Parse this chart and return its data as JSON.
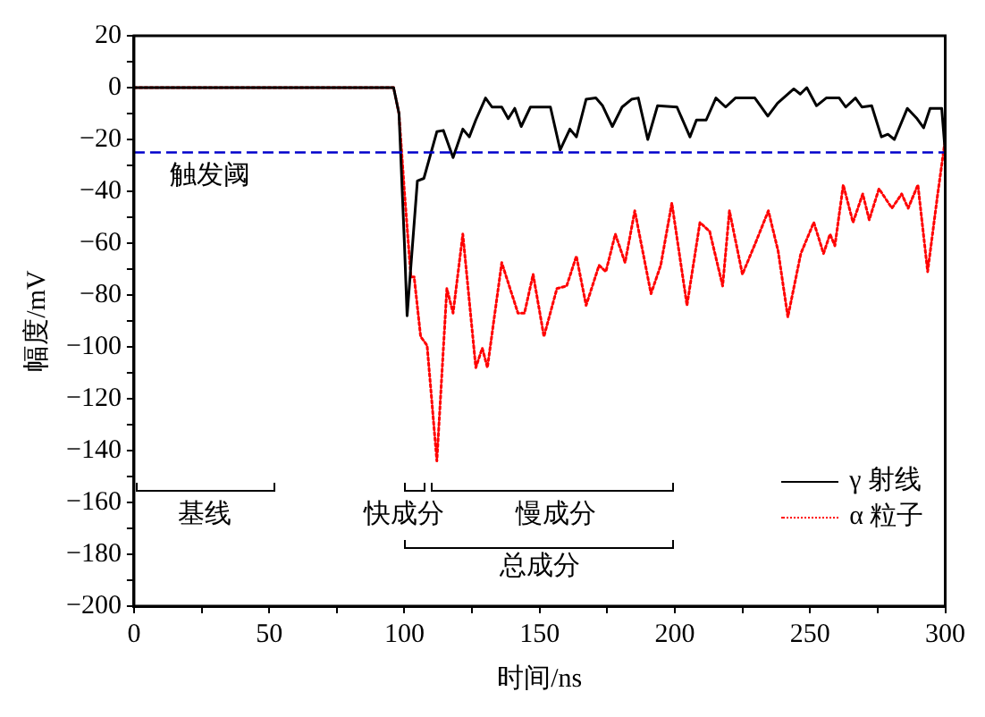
{
  "chart_data": {
    "type": "line",
    "xlabel": "时间/ns",
    "ylabel": "幅度/mV",
    "xlim": [
      0,
      300
    ],
    "ylim": [
      -200,
      20
    ],
    "xticks": [
      0,
      {
        "value": 25,
        "label": null
      },
      50,
      {
        "value": 75,
        "label": null
      },
      100,
      {
        "value": 125,
        "label": null
      },
      150,
      {
        "value": 175,
        "label": null
      },
      200,
      {
        "value": 225,
        "label": null
      },
      250,
      {
        "value": 275,
        "label": null
      },
      300
    ],
    "yticks": [
      {
        "value": -200,
        "label": "−200"
      },
      {
        "value": -190,
        "label": null
      },
      {
        "value": -180,
        "label": "−180"
      },
      {
        "value": -170,
        "label": null
      },
      {
        "value": -160,
        "label": "−160"
      },
      {
        "value": -150,
        "label": null
      },
      {
        "value": -140,
        "label": "−140"
      },
      {
        "value": -130,
        "label": null
      },
      {
        "value": -120,
        "label": "−120"
      },
      {
        "value": -110,
        "label": null
      },
      {
        "value": -100,
        "label": "−100"
      },
      {
        "value": -90,
        "label": null
      },
      {
        "value": -80,
        "label": "−80"
      },
      {
        "value": -70,
        "label": null
      },
      {
        "value": -60,
        "label": "−60"
      },
      {
        "value": -50,
        "label": null
      },
      {
        "value": -40,
        "label": "−40"
      },
      {
        "value": -30,
        "label": null
      },
      {
        "value": -20,
        "label": "−20"
      },
      {
        "value": -10,
        "label": null
      },
      0,
      {
        "value": 10,
        "label": null
      },
      20
    ],
    "grid": false,
    "legend": "bottom right",
    "marker": "none",
    "series": [
      {
        "name": "γ 射线",
        "color": "#000000",
        "line_style": "solid",
        "x": [
          0,
          96,
          98,
          100,
          101,
          104.8,
          107.2,
          112,
          114.4,
          118,
          121.6,
          124,
          126.4,
          130,
          132.4,
          136,
          138.4,
          140.8,
          143.2,
          146.6,
          154,
          157.6,
          161.2,
          163.6,
          167.2,
          170.8,
          173.3,
          176.9,
          180.5,
          184,
          186.5,
          190,
          193.6,
          200.8,
          205.6,
          208,
          211.6,
          215.2,
          218.8,
          222.4,
          229.6,
          234.4,
          238,
          244,
          246.4,
          248.8,
          252.4,
          256,
          260.8,
          263.2,
          266.8,
          269.2,
          272.8,
          276.4,
          278.8,
          281.2,
          286,
          289.6,
          292,
          294.4,
          298.7,
          300
        ],
        "values": [
          0,
          0,
          -10,
          -60,
          -88,
          -36,
          -35,
          -17,
          -16.5,
          -27,
          -16,
          -19,
          -12.5,
          -4,
          -7.5,
          -7.5,
          -12,
          -8,
          -15,
          -7.5,
          -7.5,
          -24,
          -16,
          -19,
          -4.5,
          -4,
          -7,
          -15,
          -7.5,
          -4.5,
          -4,
          -20,
          -7,
          -7.5,
          -19,
          -12.5,
          -12.5,
          -4,
          -7.5,
          -4,
          -4,
          -11,
          -6,
          -0.5,
          -2.5,
          0,
          -7,
          -4,
          -4,
          -7.5,
          -4,
          -7.5,
          -7,
          -19,
          -18,
          -20,
          -8,
          -12,
          -15.5,
          -8,
          -8,
          -25
        ]
      },
      {
        "name": "α 粒子",
        "color": "#ff0000",
        "line_style": "dotted",
        "x": [
          0,
          96,
          98,
          100,
          102.4,
          103.6,
          106,
          108.4,
          112,
          115.7,
          118,
          121.6,
          126.4,
          128.8,
          130.7,
          136,
          142,
          144.4,
          147.6,
          151.6,
          156.4,
          160,
          163.6,
          167.2,
          172,
          174.5,
          178,
          181.6,
          185.2,
          191.2,
          194.8,
          198.9,
          204.5,
          209.3,
          212.9,
          217.7,
          220.2,
          225,
          229.8,
          234.6,
          238.2,
          241.8,
          246.6,
          251.4,
          255,
          257.4,
          259.2,
          262.3,
          265.9,
          269.5,
          271.9,
          275.5,
          280.3,
          283.9,
          286.3,
          289.9,
          293.5,
          297.1,
          300
        ],
        "values": [
          0,
          0,
          -10,
          -40,
          -73,
          -73,
          -96,
          -99.5,
          -144,
          -77.5,
          -87,
          -56.5,
          -108,
          -100.5,
          -108,
          -67.5,
          -87,
          -87,
          -72,
          -96,
          -77.5,
          -76.5,
          -65,
          -84,
          -68.5,
          -71,
          -56.5,
          -67.5,
          -47.5,
          -79.5,
          -68.5,
          -44.5,
          -84,
          -52,
          -55.5,
          -76.5,
          -47.5,
          -72,
          -60,
          -47.5,
          -63,
          -88.5,
          -64,
          -52,
          -64,
          -56.5,
          -61,
          -37.5,
          -52,
          -41,
          -51,
          -39,
          -46.5,
          -41,
          -46.5,
          -37.5,
          -71,
          -42,
          -20
        ]
      }
    ],
    "ref_lines": [
      {
        "axis": "y",
        "value": -25,
        "label": "触发阈",
        "color": "#0000cc",
        "line_style": "dashed"
      }
    ],
    "annotations": [
      "基线",
      "快成分",
      "慢成分",
      "总成分"
    ]
  }
}
